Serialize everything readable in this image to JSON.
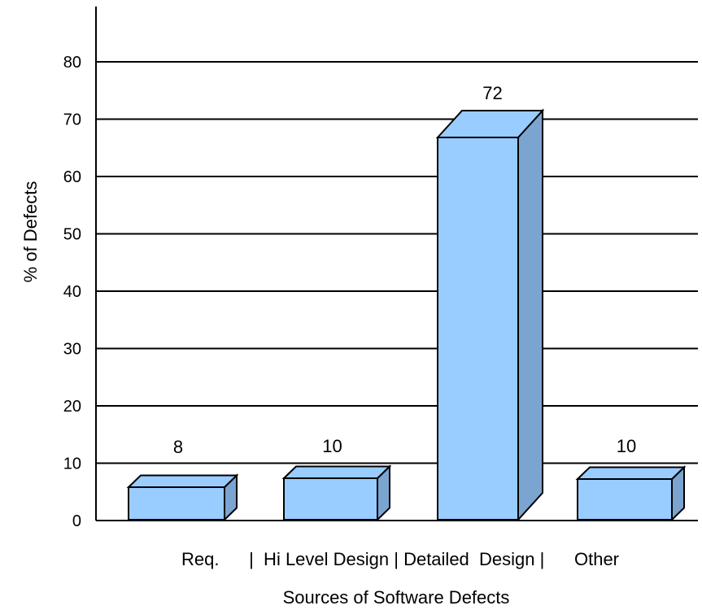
{
  "chart_data": {
    "type": "bar",
    "style": "3d",
    "title": "",
    "xlabel": "Sources of Software Defects",
    "ylabel": "% of Defects",
    "categories": [
      "Req.",
      "Hi Level Design",
      "Detailed  Design",
      "Other"
    ],
    "values": [
      8,
      10,
      72,
      10
    ],
    "data_labels": [
      "8",
      "10",
      "72",
      "10"
    ],
    "category_axis_text": "Req.      |  Hi Level Design | Detailed  Design |      Other",
    "ylim": [
      0,
      80
    ],
    "yticks": [
      "0",
      "10",
      "20",
      "30",
      "40",
      "50",
      "60",
      "70",
      "80"
    ],
    "grid": true,
    "legend": "none",
    "colors": {
      "face": "#99ccff",
      "top": "#99ccff",
      "side": "#7ba4d1",
      "stroke": "#000000"
    }
  }
}
